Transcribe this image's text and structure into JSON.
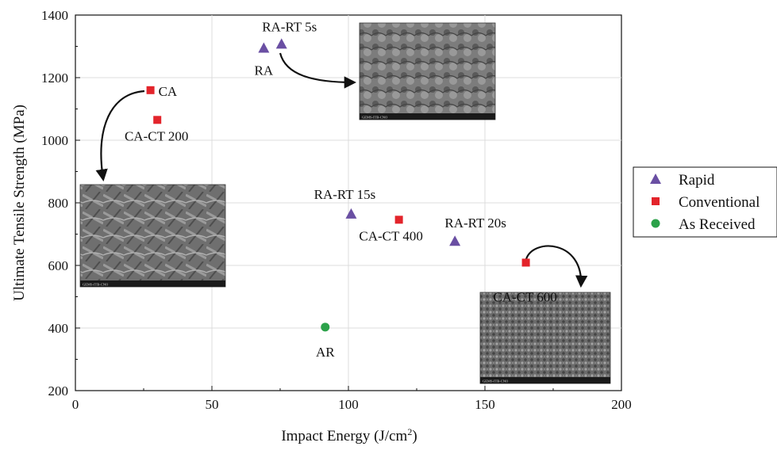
{
  "chart_data": {
    "type": "scatter",
    "title": "",
    "xlabel": "Impact Energy (J/cm",
    "xlabel_sup": "2",
    "xlabel_end": ")",
    "ylabel": "Ultimate Tensile Strength (MPa)",
    "xlim": [
      0,
      200
    ],
    "ylim": [
      200,
      1400
    ],
    "xticks": [
      0,
      50,
      100,
      150,
      200
    ],
    "yticks": [
      200,
      400,
      600,
      800,
      1000,
      1200,
      1400
    ],
    "grid": true,
    "legend_position": "right",
    "series": [
      {
        "name": "Rapid",
        "marker": "triangle",
        "color": "#6a4fa3",
        "points": [
          {
            "label": "RA",
            "x": 69,
            "y": 1295
          },
          {
            "label": "RA-RT 5s",
            "x": 75.5,
            "y": 1308
          },
          {
            "label": "RA-RT 15s",
            "x": 101,
            "y": 765
          },
          {
            "label": "RA-RT 20s",
            "x": 139,
            "y": 678
          }
        ]
      },
      {
        "name": "Conventional",
        "marker": "square",
        "color": "#e3242b",
        "points": [
          {
            "label": "CA",
            "x": 27.5,
            "y": 1160
          },
          {
            "label": "CA-CT 200",
            "x": 30,
            "y": 1065
          },
          {
            "label": "CA-CT 400",
            "x": 118.5,
            "y": 746
          },
          {
            "label": "CA-CT 600",
            "x": 165,
            "y": 609
          }
        ]
      },
      {
        "name": "As Received",
        "marker": "circle",
        "color": "#2ca24a",
        "points": [
          {
            "label": "AR",
            "x": 91.5,
            "y": 403
          }
        ]
      }
    ],
    "insets": [
      {
        "name": "sem-fractograph-rapid",
        "caption": "GEMS-ITB-CNO"
      },
      {
        "name": "sem-fractograph-conventional",
        "caption": "GEMS-ITB-CNO"
      },
      {
        "name": "sem-fractograph-ca-ct-600",
        "caption": "GEMS-ITB-CNO"
      }
    ]
  }
}
